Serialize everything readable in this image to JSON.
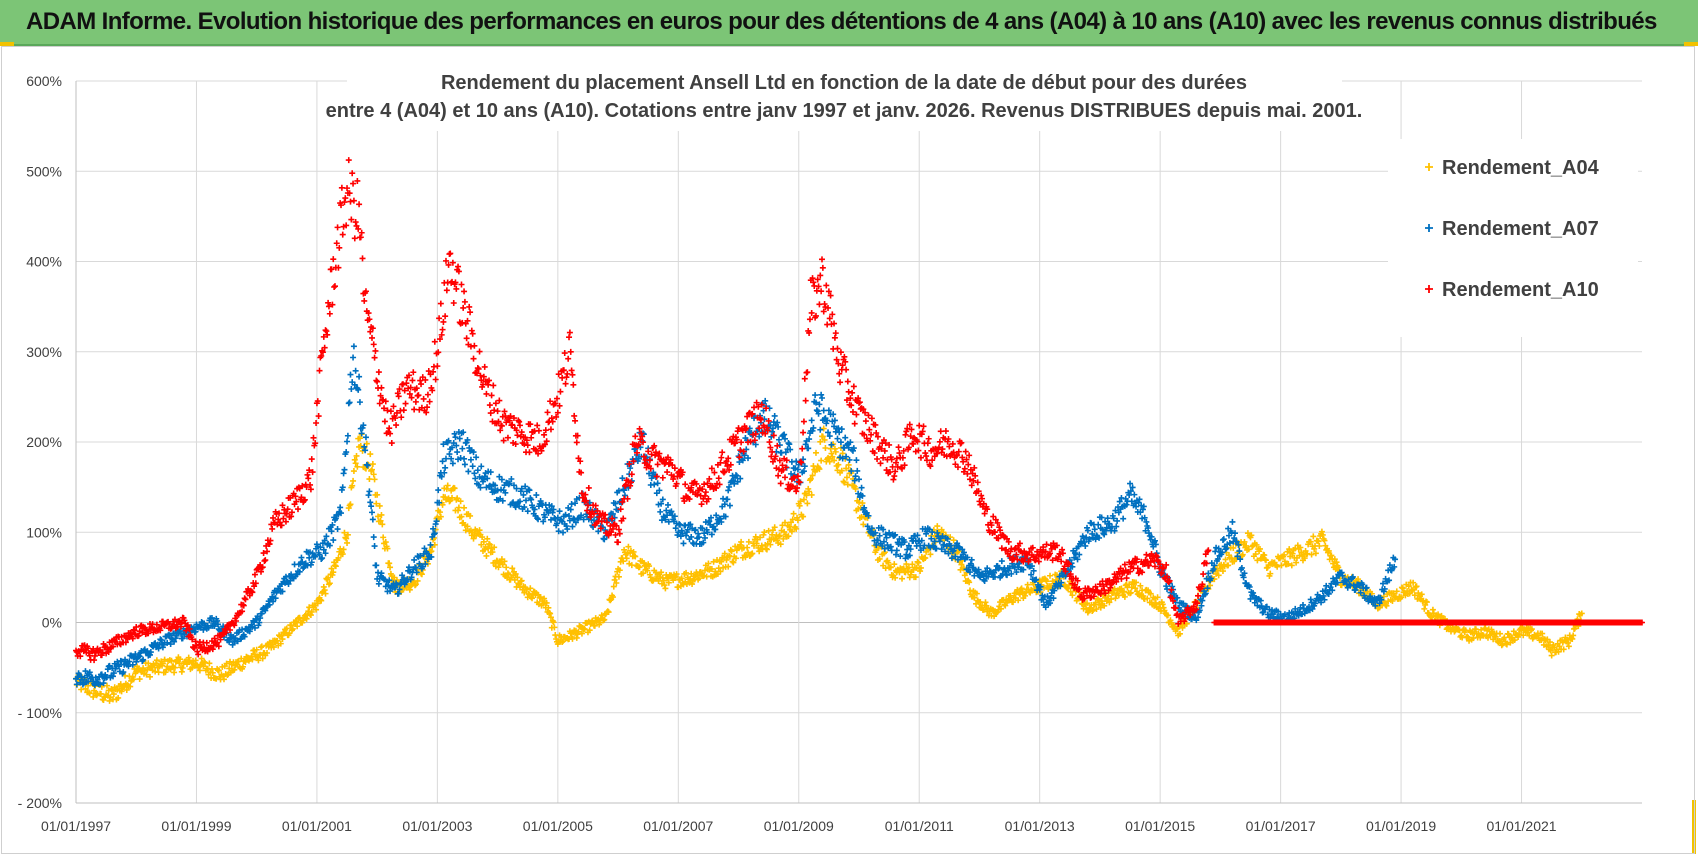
{
  "banner": {
    "title": "ADAM Informe. Evolution historique des performances en euros pour des détentions de 4 ans (A04) à 10 ans (A10) avec les revenus connus distribués"
  },
  "colors": {
    "banner_bg": "#7cc576",
    "A04": "#ffc000",
    "A07": "#0070c0",
    "A10": "#ff0000",
    "grid": "#d9d9d9",
    "axis_text": "#404040",
    "title_text": "#404040"
  },
  "chart_data": {
    "type": "scatter",
    "title_line1": "Rendement du placement Ansell Ltd  en fonction de la date de début pour des durées",
    "title_line2": "entre 4 (A04) et 10 ans (A10).  Cotations entre janv 1997 et janv. 2026. Revenus DISTRIBUES depuis mai. 2001.",
    "xlabel": "",
    "ylabel": "",
    "xlim": [
      1997.0,
      2023.0
    ],
    "ylim": [
      -200,
      600
    ],
    "yticks": [
      -200,
      -100,
      0,
      100,
      200,
      300,
      400,
      500,
      600
    ],
    "ytick_labels": [
      "- 200%",
      "- 100%",
      "0%",
      "100%",
      "200%",
      "300%",
      "400%",
      "500%",
      "600%"
    ],
    "xticks": [
      1997,
      1999,
      2001,
      2003,
      2005,
      2007,
      2009,
      2011,
      2013,
      2015,
      2017,
      2019,
      2021
    ],
    "xtick_labels": [
      "01/01/1997",
      "01/01/1999",
      "01/01/2001",
      "01/01/2003",
      "01/01/2005",
      "01/01/2007",
      "01/01/2009",
      "01/01/2011",
      "01/01/2013",
      "01/01/2015",
      "01/01/2017",
      "01/01/2019",
      "01/01/2021"
    ],
    "grid": true,
    "legend_position": "top-right",
    "marker": "+",
    "series": [
      {
        "name": "Rendement_A04",
        "x": [
          1997.0,
          1997.3,
          1997.6,
          1998.0,
          1998.5,
          1999.0,
          1999.4,
          1999.8,
          2000.2,
          2000.6,
          2001.0,
          2001.3,
          2001.5,
          2001.7,
          2001.9,
          2002.1,
          2002.3,
          2002.6,
          2002.9,
          2003.1,
          2003.3,
          2003.6,
          2004.0,
          2004.4,
          2004.8,
          2005.0,
          2005.2,
          2005.5,
          2005.8,
          2006.1,
          2006.4,
          2006.8,
          2007.2,
          2007.6,
          2008.0,
          2008.4,
          2008.8,
          2009.1,
          2009.4,
          2009.7,
          2010.0,
          2010.3,
          2010.6,
          2011.0,
          2011.3,
          2011.6,
          2011.9,
          2012.2,
          2012.6,
          2013.0,
          2013.4,
          2013.8,
          2014.2,
          2014.6,
          2015.0,
          2015.3,
          2015.6,
          2015.9,
          2016.2,
          2016.5,
          2016.8,
          2017.1,
          2017.4,
          2017.7,
          2018.0,
          2018.3,
          2018.6,
          2018.9,
          2019.2,
          2019.5,
          2019.8,
          2020.1,
          2020.4,
          2020.7,
          2021.0,
          2021.3,
          2021.5,
          2021.8,
          2022.0
        ],
        "values": [
          -65,
          -75,
          -82,
          -55,
          -48,
          -45,
          -58,
          -42,
          -30,
          -5,
          20,
          60,
          100,
          200,
          170,
          100,
          40,
          45,
          80,
          140,
          135,
          100,
          70,
          40,
          20,
          -20,
          -15,
          -5,
          5,
          80,
          60,
          45,
          50,
          60,
          80,
          90,
          100,
          130,
          200,
          180,
          130,
          80,
          55,
          60,
          100,
          80,
          30,
          10,
          30,
          40,
          50,
          15,
          30,
          40,
          20,
          -10,
          20,
          55,
          75,
          90,
          60,
          70,
          80,
          90,
          50,
          40,
          20,
          30,
          40,
          10,
          -5,
          -15,
          -10,
          -20,
          -10,
          -15,
          -30,
          -20,
          10
        ]
      },
      {
        "name": "Rendement_A07",
        "x": [
          1997.0,
          1997.3,
          1997.6,
          1998.0,
          1998.5,
          1999.0,
          1999.3,
          1999.6,
          2000.0,
          2000.4,
          2000.8,
          2001.1,
          2001.4,
          2001.6,
          2001.8,
          2002.0,
          2002.3,
          2002.6,
          2002.9,
          2003.1,
          2003.4,
          2003.7,
          2004.0,
          2004.4,
          2004.8,
          2005.1,
          2005.4,
          2005.8,
          2006.1,
          2006.4,
          2006.7,
          2007.0,
          2007.4,
          2007.8,
          2008.1,
          2008.4,
          2008.7,
          2009.0,
          2009.3,
          2009.6,
          2009.9,
          2010.2,
          2010.5,
          2010.8,
          2011.1,
          2011.4,
          2011.7,
          2012.0,
          2012.4,
          2012.8,
          2013.1,
          2013.4,
          2013.8,
          2014.2,
          2014.5,
          2014.8,
          2015.0,
          2015.3,
          2015.6,
          2015.9,
          2016.2,
          2016.5,
          2016.8,
          2017.1,
          2017.4,
          2017.7,
          2018.0,
          2018.3,
          2018.6,
          2018.9
        ],
        "values": [
          -60,
          -62,
          -55,
          -40,
          -20,
          -5,
          0,
          -20,
          0,
          40,
          70,
          80,
          120,
          300,
          200,
          50,
          35,
          60,
          80,
          180,
          200,
          160,
          150,
          140,
          120,
          110,
          130,
          100,
          150,
          200,
          130,
          100,
          95,
          130,
          190,
          230,
          200,
          160,
          240,
          210,
          180,
          100,
          90,
          80,
          95,
          85,
          75,
          50,
          60,
          70,
          20,
          50,
          100,
          110,
          140,
          110,
          60,
          20,
          5,
          70,
          100,
          30,
          10,
          5,
          15,
          30,
          50,
          40,
          20,
          70
        ]
      },
      {
        "name": "Rendement_A10",
        "x": [
          1997.0,
          1997.3,
          1997.6,
          1998.0,
          1998.4,
          1998.8,
          1999.0,
          1999.4,
          1999.7,
          2000.0,
          2000.3,
          2000.6,
          2000.9,
          2001.1,
          2001.3,
          2001.5,
          2001.7,
          2001.8,
          2002.0,
          2002.2,
          2002.5,
          2002.8,
          2003.0,
          2003.2,
          2003.5,
          2003.8,
          2004.1,
          2004.4,
          2004.7,
          2005.0,
          2005.2,
          2005.4,
          2005.7,
          2006.0,
          2006.3,
          2006.6,
          2006.9,
          2007.2,
          2007.5,
          2007.8,
          2008.1,
          2008.4,
          2008.7,
          2009.0,
          2009.2,
          2009.4,
          2009.7,
          2010.0,
          2010.3,
          2010.6,
          2010.9,
          2011.2,
          2011.5,
          2011.8,
          2012.1,
          2012.5,
          2012.9,
          2013.3,
          2013.7,
          2014.1,
          2014.5,
          2014.9,
          2015.1,
          2015.3,
          2015.6,
          2015.8
        ],
        "values": [
          -30,
          -35,
          -25,
          -10,
          -5,
          0,
          -30,
          -20,
          10,
          50,
          110,
          130,
          160,
          300,
          400,
          480,
          450,
          350,
          280,
          210,
          260,
          250,
          300,
          400,
          330,
          260,
          220,
          210,
          200,
          250,
          300,
          150,
          110,
          100,
          200,
          180,
          170,
          140,
          150,
          180,
          210,
          230,
          170,
          150,
          350,
          380,
          280,
          230,
          200,
          170,
          210,
          190,
          200,
          180,
          120,
          80,
          75,
          80,
          30,
          40,
          60,
          70,
          55,
          0,
          20,
          80
        ]
      },
      {
        "name": "Rendement_A10_zero",
        "x_start": 2015.9,
        "x_end": 2023.0,
        "value": 0
      }
    ]
  },
  "legend": {
    "items": [
      {
        "label": "Rendement_A04",
        "color": "#ffc000"
      },
      {
        "label": "Rendement_A07",
        "color": "#0070c0"
      },
      {
        "label": "Rendement_A10",
        "color": "#ff0000"
      }
    ]
  }
}
